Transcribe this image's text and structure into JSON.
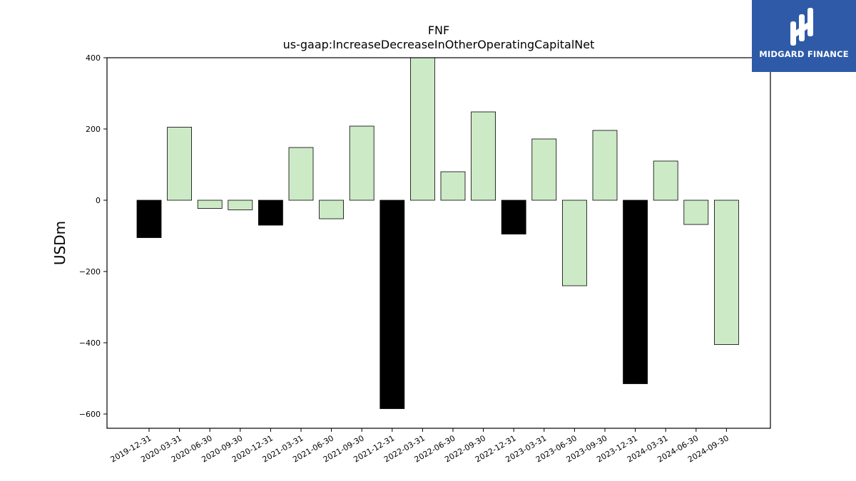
{
  "brand": {
    "name": "MIDGARD FINANCE",
    "bg_color": "#2e5aa8"
  },
  "chart_data": {
    "type": "bar",
    "title": "FNF",
    "subtitle": "us-gaap:IncreaseDecreaseInOtherOperatingCapitalNet",
    "xlabel": "",
    "ylabel": "USDm",
    "ylim": [
      -640,
      400
    ],
    "yticks": [
      400,
      200,
      0,
      -200,
      -400,
      -600
    ],
    "ytick_labels": [
      "400",
      "200",
      "0",
      "−200",
      "−400",
      "−600"
    ],
    "grid": false,
    "categories": [
      "2019-12-31",
      "2020-03-31",
      "2020-06-30",
      "2020-09-30",
      "2020-12-31",
      "2021-03-31",
      "2021-06-30",
      "2021-09-30",
      "2021-12-31",
      "2022-03-31",
      "2022-06-30",
      "2022-09-30",
      "2022-12-31",
      "2023-03-31",
      "2023-06-30",
      "2023-09-30",
      "2023-12-31",
      "2024-03-31",
      "2024-06-30",
      "2024-09-30"
    ],
    "values": [
      -105,
      205,
      -23,
      -27,
      -70,
      148,
      -52,
      208,
      -585,
      405,
      80,
      248,
      -95,
      172,
      -240,
      196,
      -515,
      110,
      -68,
      -405
    ],
    "highlight": [
      true,
      false,
      false,
      false,
      true,
      false,
      false,
      false,
      true,
      false,
      false,
      false,
      true,
      false,
      false,
      false,
      true,
      false,
      false,
      false
    ],
    "colors": {
      "normal": "#cdeac6",
      "highlight": "#000000",
      "edge": "#000000"
    }
  }
}
